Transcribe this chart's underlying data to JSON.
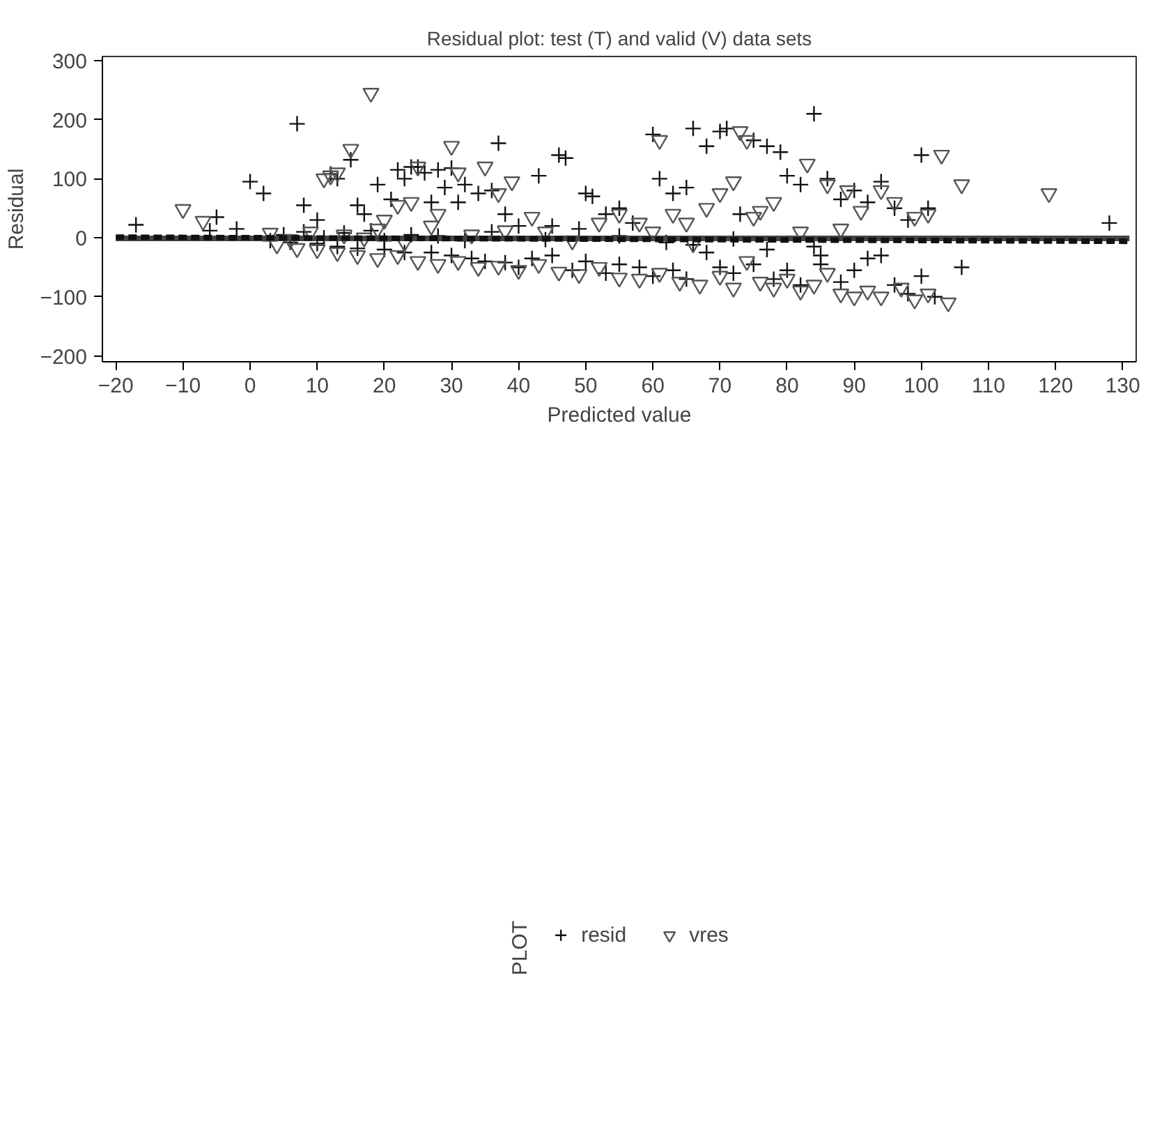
{
  "chart_data": {
    "type": "scatter",
    "title": "Residual plot: test (T) and valid (V) data sets",
    "xlabel": "Predicted value",
    "ylabel": "Residual",
    "legend_title": "PLOT",
    "legend": "bottom",
    "grid": false,
    "xlim": [
      -22,
      132
    ],
    "ylim": [
      -210,
      307
    ],
    "xticks": [
      {
        "value": -20,
        "label": "−20"
      },
      {
        "value": -10,
        "label": "−10"
      },
      0,
      10,
      20,
      30,
      40,
      50,
      60,
      70,
      80,
      90,
      100,
      110,
      120,
      130
    ],
    "yticks": [
      {
        "value": -200,
        "label": "−200"
      },
      {
        "value": -100,
        "label": "−100"
      },
      0,
      100,
      200,
      300
    ],
    "series": [
      {
        "name": "resid",
        "type": "scatter",
        "marker": "cross",
        "color": "#111111",
        "x": [
          -17,
          -5,
          -6,
          -2,
          0,
          2,
          7,
          8,
          10,
          12,
          13,
          15,
          16,
          17,
          19,
          21,
          22,
          23,
          24,
          25,
          26,
          27,
          28,
          29,
          30,
          31,
          32,
          34,
          36,
          37,
          38,
          40,
          43,
          45,
          46,
          47,
          49,
          50,
          51,
          53,
          55,
          57,
          60,
          61,
          63,
          65,
          66,
          68,
          70,
          71,
          73,
          75,
          77,
          79,
          80,
          82,
          84,
          86,
          88,
          90,
          92,
          94,
          96,
          98,
          100,
          101,
          106,
          128,
          3,
          6,
          10,
          13,
          16,
          20,
          23,
          27,
          30,
          33,
          35,
          38,
          40,
          42,
          45,
          48,
          50,
          53,
          55,
          58,
          60,
          63,
          65,
          68,
          70,
          72,
          75,
          78,
          80,
          82,
          84,
          85,
          88,
          90,
          92,
          94,
          96,
          98,
          100,
          102,
          5,
          8,
          11,
          14,
          18,
          20,
          24,
          28,
          32,
          36,
          44,
          55,
          62,
          66,
          72,
          77,
          85
        ],
        "values": [
          22,
          35,
          12,
          15,
          95,
          75,
          193,
          55,
          30,
          108,
          100,
          132,
          55,
          40,
          90,
          65,
          115,
          100,
          120,
          120,
          110,
          60,
          115,
          85,
          118,
          60,
          90,
          75,
          80,
          160,
          40,
          20,
          105,
          20,
          140,
          135,
          15,
          75,
          70,
          40,
          50,
          25,
          175,
          100,
          75,
          85,
          185,
          155,
          180,
          185,
          40,
          165,
          155,
          145,
          105,
          90,
          210,
          100,
          65,
          80,
          60,
          95,
          50,
          30,
          140,
          50,
          -50,
          25,
          -5,
          -8,
          -10,
          -15,
          -18,
          -20,
          -25,
          -25,
          -30,
          -35,
          -40,
          -42,
          -50,
          -35,
          -30,
          -55,
          -40,
          -60,
          -45,
          -50,
          -65,
          -55,
          -70,
          -25,
          -50,
          -60,
          -45,
          -70,
          -55,
          -80,
          -15,
          -45,
          -75,
          -55,
          -35,
          -30,
          -80,
          -95,
          -65,
          -100,
          5,
          10,
          0,
          8,
          12,
          -5,
          5,
          3,
          -5,
          10,
          -3,
          3,
          -8,
          -12,
          -2,
          -20,
          -30
        ]
      },
      {
        "name": "vres",
        "type": "scatter",
        "marker": "triangle",
        "color": "#555555",
        "x": [
          -10,
          -7,
          3,
          11,
          12,
          13,
          15,
          17,
          18,
          20,
          22,
          24,
          25,
          28,
          30,
          31,
          35,
          37,
          39,
          42,
          44,
          52,
          55,
          58,
          61,
          63,
          65,
          68,
          70,
          72,
          73,
          74,
          75,
          76,
          78,
          83,
          86,
          88,
          89,
          91,
          94,
          96,
          99,
          101,
          103,
          106,
          119,
          4,
          7,
          10,
          13,
          16,
          19,
          22,
          25,
          28,
          31,
          34,
          37,
          40,
          43,
          46,
          49,
          52,
          55,
          58,
          61,
          64,
          67,
          70,
          72,
          74,
          76,
          78,
          80,
          82,
          84,
          86,
          88,
          90,
          92,
          94,
          97,
          99,
          101,
          104,
          6,
          9,
          14,
          19,
          23,
          27,
          33,
          38,
          48,
          60,
          66,
          82
        ],
        "values": [
          48,
          28,
          8,
          100,
          105,
          110,
          150,
          0,
          245,
          30,
          55,
          60,
          120,
          40,
          155,
          110,
          120,
          75,
          95,
          35,
          10,
          25,
          40,
          25,
          165,
          40,
          25,
          50,
          75,
          95,
          180,
          165,
          35,
          45,
          60,
          125,
          90,
          15,
          80,
          45,
          80,
          60,
          35,
          40,
          140,
          90,
          75,
          -12,
          -18,
          -20,
          -25,
          -30,
          -35,
          -30,
          -40,
          -45,
          -40,
          -50,
          -48,
          -55,
          -45,
          -58,
          -62,
          -50,
          -68,
          -70,
          -60,
          -75,
          -80,
          -65,
          -85,
          -40,
          -75,
          -85,
          -70,
          -90,
          -80,
          -60,
          -95,
          -100,
          -90,
          -100,
          -85,
          -105,
          -95,
          -110,
          -3,
          10,
          5,
          15,
          -8,
          20,
          5,
          12,
          -5,
          10,
          -10,
          10
        ]
      },
      {
        "type": "line",
        "line_style": "solid",
        "color": "#444444",
        "x": [
          -20,
          131
        ],
        "values": [
          -1,
          -1
        ]
      },
      {
        "type": "line",
        "line_style": "dashed",
        "color": "#111111",
        "x": [
          -20,
          131
        ],
        "values": [
          1,
          -6
        ]
      }
    ]
  }
}
